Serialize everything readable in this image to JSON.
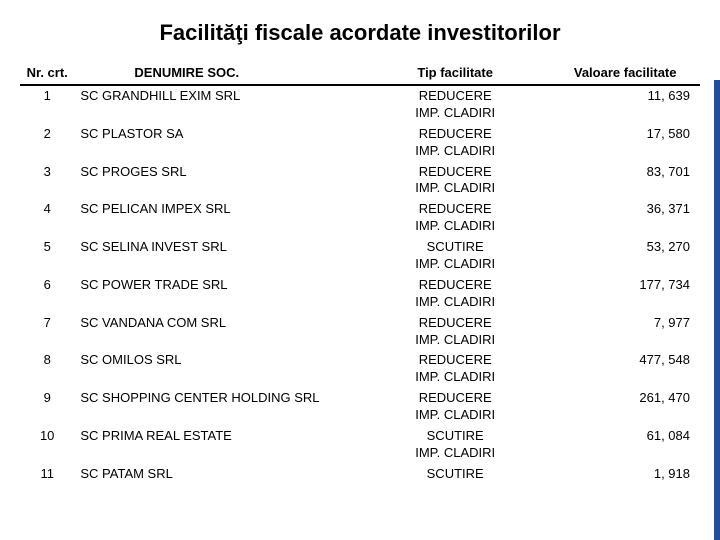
{
  "title": "Facilităţi fiscale acordate investitorilor",
  "columns": {
    "nr": "Nr. crt.",
    "denum": "DENUMIRE SOC.",
    "tip": "Tip facilitate",
    "val": "Valoare facilitate"
  },
  "rows": [
    {
      "nr": "1",
      "denum": "SC GRANDHILL EXIM SRL",
      "tip1": "REDUCERE",
      "tip2": "IMP. CLADIRI",
      "val": "11, 639"
    },
    {
      "nr": "2",
      "denum": "SC PLASTOR SA",
      "tip1": "REDUCERE",
      "tip2": "IMP. CLADIRI",
      "val": "17, 580"
    },
    {
      "nr": "3",
      "denum": "SC PROGES SRL",
      "tip1": "REDUCERE",
      "tip2": "IMP. CLADIRI",
      "val": "83, 701"
    },
    {
      "nr": "4",
      "denum": "SC PELICAN IMPEX SRL",
      "tip1": "REDUCERE",
      "tip2": "IMP. CLADIRI",
      "val": "36, 371"
    },
    {
      "nr": "5",
      "denum": "SC SELINA INVEST SRL",
      "tip1": "SCUTIRE",
      "tip2": "IMP. CLADIRI",
      "val": "53, 270"
    },
    {
      "nr": "6",
      "denum": "SC POWER TRADE SRL",
      "tip1": "REDUCERE",
      "tip2": "IMP. CLADIRI",
      "val": "177, 734"
    },
    {
      "nr": "7",
      "denum": "SC VANDANA COM SRL",
      "tip1": "REDUCERE",
      "tip2": "IMP. CLADIRI",
      "val": "7, 977"
    },
    {
      "nr": "8",
      "denum": "SC OMILOS SRL",
      "tip1": "REDUCERE",
      "tip2": "IMP. CLADIRI",
      "val": "477, 548"
    },
    {
      "nr": "9",
      "denum": "SC SHOPPING CENTER HOLDING SRL",
      "tip1": "REDUCERE",
      "tip2": "IMP. CLADIRI",
      "val": "261, 470"
    },
    {
      "nr": "10",
      "denum": "SC PRIMA REAL ESTATE",
      "tip1": "SCUTIRE",
      "tip2": "IMP. CLADIRI",
      "val": "61, 084"
    },
    {
      "nr": "11",
      "denum": "SC PATAM SRL",
      "tip1": "SCUTIRE",
      "tip2": "",
      "val": "1, 918"
    }
  ],
  "colors": {
    "stripe": "#1f4e9c",
    "header_border": "#000000",
    "text": "#000000",
    "background": "#ffffff"
  },
  "typography": {
    "title_fontsize": 22,
    "title_weight": "bold",
    "body_fontsize": 13,
    "header_weight": "bold",
    "font_family": "Arial, sans-serif"
  },
  "layout": {
    "col_widths_pct": {
      "nr": 8,
      "denum": 42,
      "tip": 28,
      "val": 22
    },
    "alignment": {
      "nr": "center",
      "denum": "left",
      "tip": "center",
      "val": "right"
    }
  }
}
